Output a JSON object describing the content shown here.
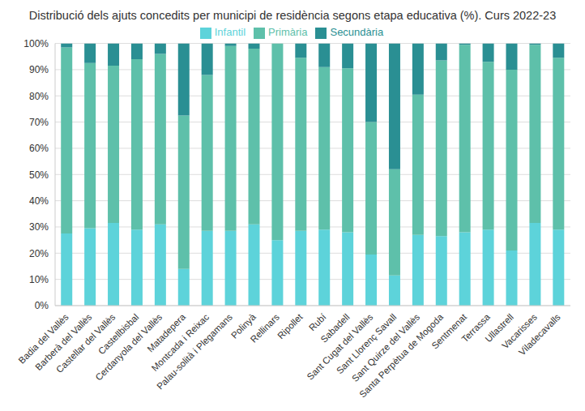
{
  "chart_data": {
    "type": "bar",
    "title": "Distribució dels ajuts concedits per municipi de residència segons etapa educativa (%). Curs 2022-23",
    "categories": [
      "Badia del Vallès",
      "Barberà del Vallès",
      "Castellar del Vallès",
      "Castellbisbal",
      "Cerdanyola del Vallès",
      "Matadepera",
      "Montcada i Reixac",
      "Palau-solità i Plegamans",
      "Polinyà",
      "Rellinars",
      "Ripollet",
      "Rubí",
      "Sabadell",
      "Sant Cugat del Vallès",
      "Sant Llorenç Savall",
      "Sant Quirze del Vallès",
      "Santa Perpètua de Mogoda",
      "Sentmenat",
      "Terrassa",
      "Ullastrell",
      "Vacarisses",
      "Viladecavalls"
    ],
    "series": [
      {
        "name": "Infantil",
        "color": "#5dd3da",
        "values": [
          27.5,
          29.5,
          31.5,
          29,
          31,
          14,
          28.5,
          28.5,
          31,
          25,
          28.5,
          29,
          28,
          19.5,
          11.5,
          27,
          26.5,
          28,
          29,
          21,
          31.5,
          29
        ]
      },
      {
        "name": "Primària",
        "color": "#5ec0aa",
        "values": [
          71,
          63,
          60,
          65,
          65,
          58.5,
          59.5,
          70.5,
          67,
          75,
          66,
          62,
          62.5,
          50.5,
          40.5,
          53.5,
          67,
          71.5,
          64,
          69,
          68,
          65.5
        ]
      },
      {
        "name": "Secundària",
        "color": "#2a8f93",
        "values": [
          1.5,
          7.5,
          8.5,
          6,
          4,
          27.5,
          12,
          1,
          2,
          0,
          5.5,
          9,
          9.5,
          30,
          48,
          19.5,
          6.5,
          0.5,
          7,
          10,
          0.5,
          5.5
        ]
      }
    ],
    "ylim": [
      0,
      100
    ],
    "yticks": [
      {
        "value": 0,
        "label": "0%"
      },
      {
        "value": 10,
        "label": "10%"
      },
      {
        "value": 20,
        "label": "20%"
      },
      {
        "value": 30,
        "label": "30%"
      },
      {
        "value": 40,
        "label": "40%"
      },
      {
        "value": 50,
        "label": "50%"
      },
      {
        "value": 60,
        "label": "60%"
      },
      {
        "value": 70,
        "label": "70%"
      },
      {
        "value": 80,
        "label": "80%"
      },
      {
        "value": 90,
        "label": "90%"
      },
      {
        "value": 100,
        "label": "100%"
      }
    ],
    "stacked": true,
    "grid": true,
    "legend": "top"
  }
}
